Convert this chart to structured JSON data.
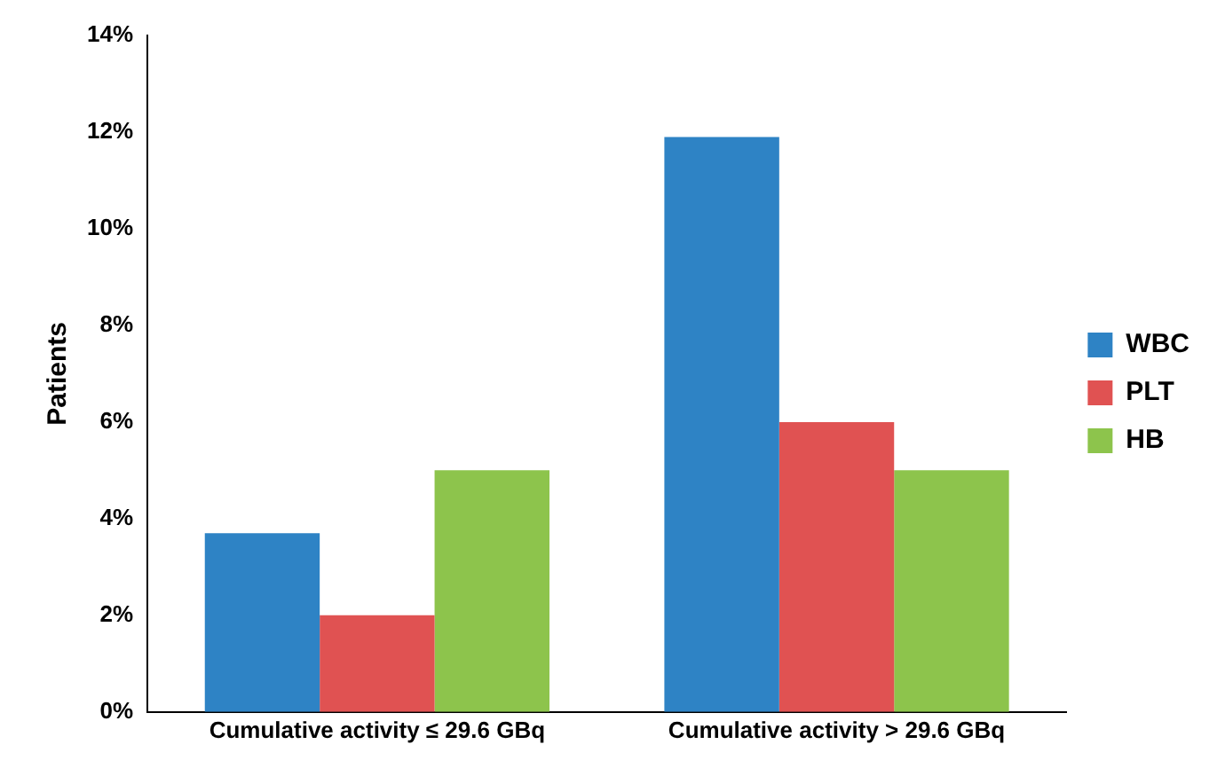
{
  "chart_data": {
    "type": "bar",
    "ylabel": "Patients",
    "categories": [
      "Cumulative activity ≤ 29.6 GBq",
      "Cumulative activity > 29.6 GBq"
    ],
    "series": [
      {
        "name": "WBC",
        "color": "#2e83c5",
        "values": [
          3.7,
          11.9
        ]
      },
      {
        "name": "PLT",
        "color": "#e05252",
        "values": [
          2,
          6
        ]
      },
      {
        "name": "HB",
        "color": "#8dc44c",
        "values": [
          5,
          5
        ]
      }
    ],
    "ylim": [
      0,
      14
    ],
    "yticks": [
      {
        "value": 0,
        "label": "0%"
      },
      {
        "value": 2,
        "label": "2%"
      },
      {
        "value": 4,
        "label": "4%"
      },
      {
        "value": 6,
        "label": "6%"
      },
      {
        "value": 8,
        "label": "8%"
      },
      {
        "value": 10,
        "label": "10%"
      },
      {
        "value": 12,
        "label": "12%"
      },
      {
        "value": 14,
        "label": "14%"
      }
    ],
    "grid": false,
    "legend": "right"
  }
}
